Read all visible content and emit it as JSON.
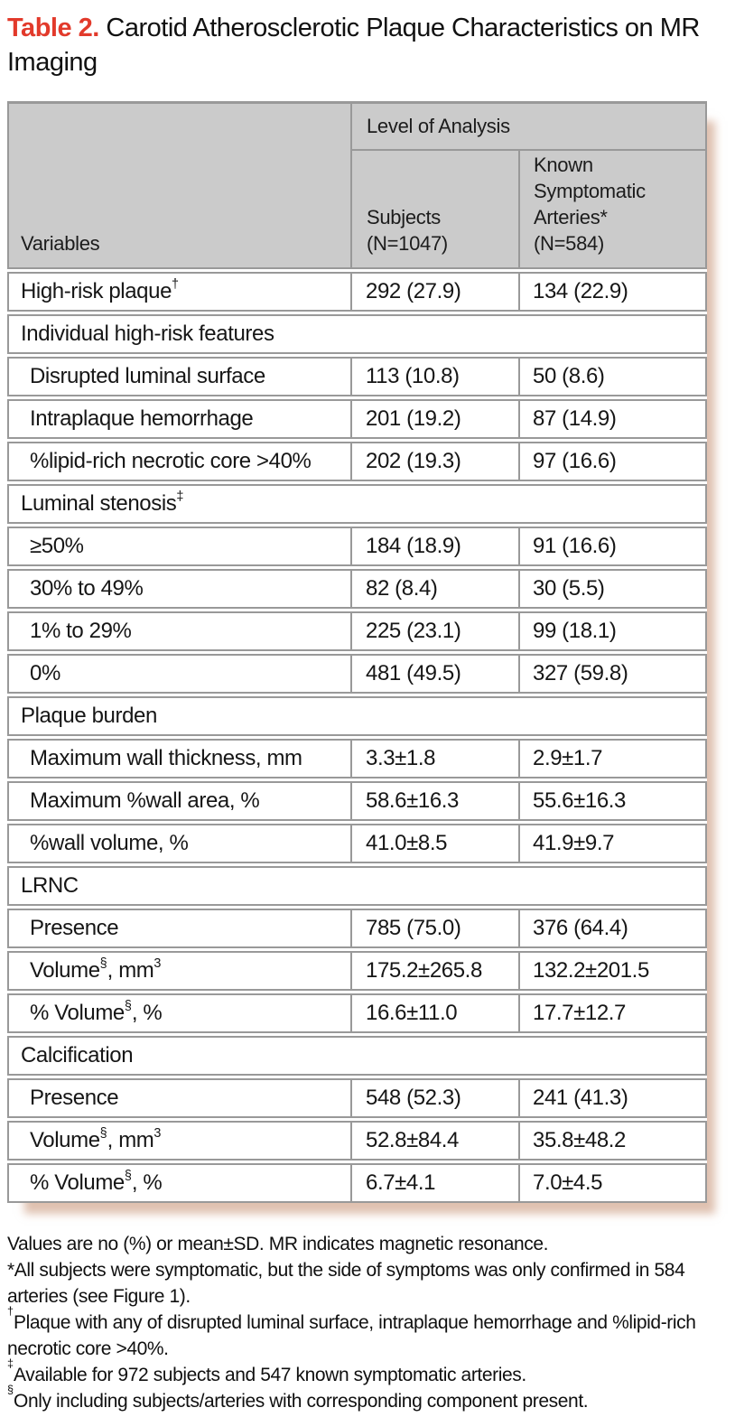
{
  "title": {
    "label": "Table 2.",
    "text": "Carotid Atherosclerotic Plaque Characteristics on MR Imaging"
  },
  "colors": {
    "accent_red": "#e23a2b",
    "header_gray": "#cbcbcb",
    "border_gray": "#999999",
    "shadow_pink": "#c9987c"
  },
  "table": {
    "variables_header": "Variables",
    "level_header": "Level of Analysis",
    "col_headers": [
      {
        "lines": [
          "Subjects",
          "(N=1047)"
        ]
      },
      {
        "lines": [
          "Known",
          "Symptomatic",
          "Arteries*",
          "(N=584)"
        ]
      }
    ],
    "rows": [
      {
        "type": "data",
        "indent": 0,
        "label": [
          {
            "t": "High-risk plaque"
          },
          {
            "t": "†",
            "sup": true
          }
        ],
        "subjects": "292 (27.9)",
        "arteries": "134 (22.9)"
      },
      {
        "type": "section",
        "label": [
          {
            "t": "Individual high-risk features"
          }
        ]
      },
      {
        "type": "data",
        "indent": 1,
        "label": [
          {
            "t": "Disrupted luminal surface"
          }
        ],
        "subjects": "113 (10.8)",
        "arteries": "50 (8.6)"
      },
      {
        "type": "data",
        "indent": 1,
        "label": [
          {
            "t": "Intraplaque hemorrhage"
          }
        ],
        "subjects": "201 (19.2)",
        "arteries": "87 (14.9)"
      },
      {
        "type": "data",
        "indent": 1,
        "label": [
          {
            "t": "%lipid-rich necrotic core >40%"
          }
        ],
        "subjects": "202 (19.3)",
        "arteries": "97 (16.6)"
      },
      {
        "type": "section",
        "label": [
          {
            "t": "Luminal stenosis"
          },
          {
            "t": "‡",
            "sup": true
          }
        ]
      },
      {
        "type": "data",
        "indent": 1,
        "label": [
          {
            "t": "≥50%"
          }
        ],
        "subjects": "184 (18.9)",
        "arteries": "91 (16.6)"
      },
      {
        "type": "data",
        "indent": 1,
        "label": [
          {
            "t": "30% to 49%"
          }
        ],
        "subjects": "82 (8.4)",
        "arteries": "30 (5.5)"
      },
      {
        "type": "data",
        "indent": 1,
        "label": [
          {
            "t": "1% to 29%"
          }
        ],
        "subjects": "225 (23.1)",
        "arteries": "99 (18.1)"
      },
      {
        "type": "data",
        "indent": 1,
        "label": [
          {
            "t": "0%"
          }
        ],
        "subjects": "481 (49.5)",
        "arteries": "327 (59.8)"
      },
      {
        "type": "section",
        "label": [
          {
            "t": "Plaque burden"
          }
        ]
      },
      {
        "type": "data",
        "indent": 1,
        "label": [
          {
            "t": "Maximum wall thickness, mm"
          }
        ],
        "subjects": "3.3±1.8",
        "arteries": "2.9±1.7"
      },
      {
        "type": "data",
        "indent": 1,
        "label": [
          {
            "t": "Maximum %wall area, %"
          }
        ],
        "subjects": "58.6±16.3",
        "arteries": "55.6±16.3"
      },
      {
        "type": "data",
        "indent": 1,
        "label": [
          {
            "t": "%wall volume, %"
          }
        ],
        "subjects": "41.0±8.5",
        "arteries": "41.9±9.7"
      },
      {
        "type": "section",
        "label": [
          {
            "t": "LRNC"
          }
        ]
      },
      {
        "type": "data",
        "indent": 1,
        "label": [
          {
            "t": "Presence"
          }
        ],
        "subjects": "785 (75.0)",
        "arteries": "376 (64.4)"
      },
      {
        "type": "data",
        "indent": 1,
        "label": [
          {
            "t": "Volume"
          },
          {
            "t": "§",
            "sup": true
          },
          {
            "t": ", mm"
          },
          {
            "t": "3",
            "sup": true
          }
        ],
        "subjects": "175.2±265.8",
        "arteries": "132.2±201.5"
      },
      {
        "type": "data",
        "indent": 1,
        "label": [
          {
            "t": "% Volume"
          },
          {
            "t": "§",
            "sup": true
          },
          {
            "t": ", %"
          }
        ],
        "subjects": "16.6±11.0",
        "arteries": "17.7±12.7"
      },
      {
        "type": "section",
        "label": [
          {
            "t": "Calcification"
          }
        ]
      },
      {
        "type": "data",
        "indent": 1,
        "label": [
          {
            "t": "Presence"
          }
        ],
        "subjects": "548 (52.3)",
        "arteries": "241 (41.3)"
      },
      {
        "type": "data",
        "indent": 1,
        "label": [
          {
            "t": "Volume"
          },
          {
            "t": "§",
            "sup": true
          },
          {
            "t": ", mm"
          },
          {
            "t": "3",
            "sup": true
          }
        ],
        "subjects": "52.8±84.4",
        "arteries": "35.8±48.2"
      },
      {
        "type": "data",
        "indent": 1,
        "label": [
          {
            "t": "% Volume"
          },
          {
            "t": "§",
            "sup": true
          },
          {
            "t": ", %"
          }
        ],
        "subjects": "6.7±4.1",
        "arteries": "7.0±4.5"
      }
    ]
  },
  "footnotes": [
    [
      {
        "t": "Values are no (%) or mean±SD. MR indicates magnetic resonance."
      }
    ],
    [
      {
        "t": "*All subjects were symptomatic, but the side of symptoms was only confirmed in 584 arteries (see Figure 1)."
      }
    ],
    [
      {
        "t": "†",
        "sup": true
      },
      {
        "t": "Plaque with any of disrupted luminal surface, intraplaque hemorrhage and %lipid-rich necrotic core >40%."
      }
    ],
    [
      {
        "t": "‡",
        "sup": true
      },
      {
        "t": "Available for 972 subjects and 547 known symptomatic arteries."
      }
    ],
    [
      {
        "t": "§",
        "sup": true
      },
      {
        "t": "Only including subjects/arteries with corresponding component present."
      }
    ]
  ]
}
